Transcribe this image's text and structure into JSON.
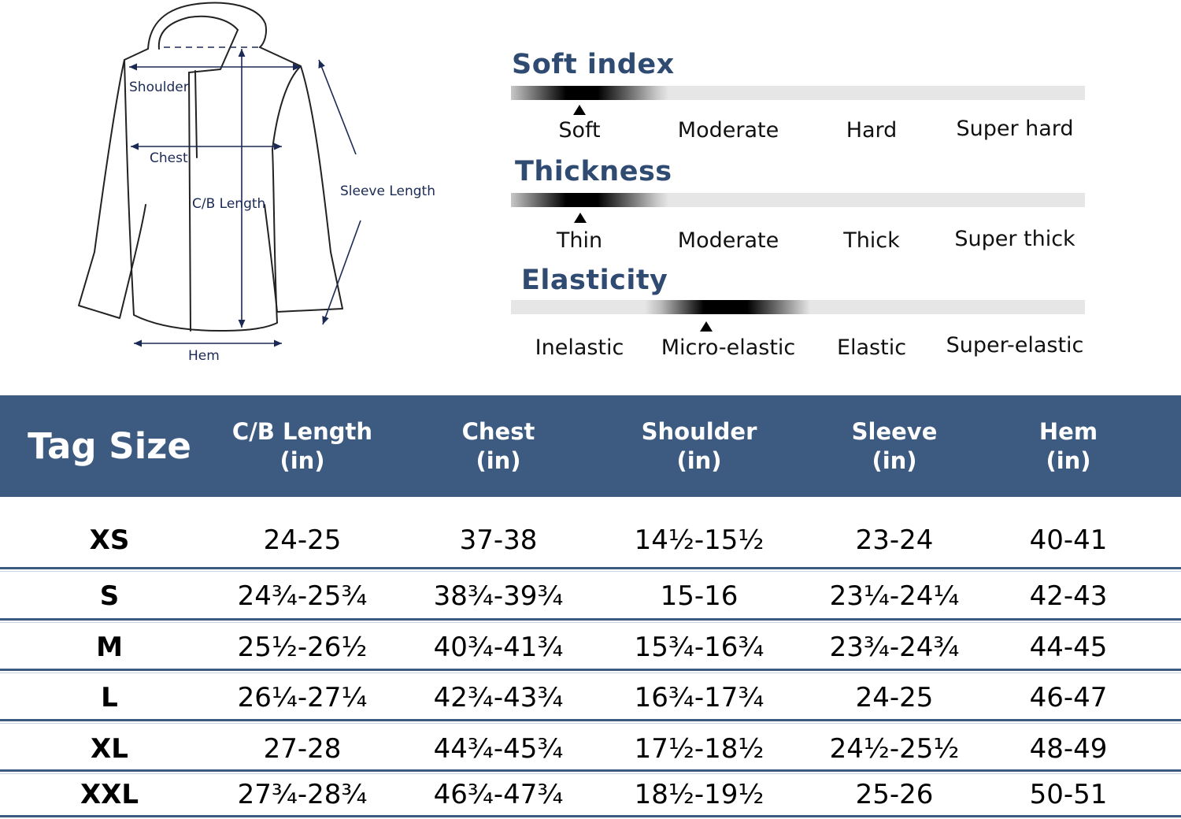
{
  "diagram": {
    "labels": {
      "shoulder": "Shoulder",
      "chest": "Chest",
      "cb_length": "C/B Length",
      "sleeve_length": "Sleeve Length",
      "hem": "Hem"
    }
  },
  "scales": [
    {
      "title": "Soft index",
      "options": [
        "Soft",
        "Moderate",
        "Hard",
        "Super hard"
      ],
      "selected": "Soft"
    },
    {
      "title": "Thickness",
      "options": [
        "Thin",
        "Moderate",
        "Thick",
        "Super thick"
      ],
      "selected": "Thin"
    },
    {
      "title": "Elasticity",
      "options": [
        "Inelastic",
        "Micro-elastic",
        "Elastic",
        "Super-elastic"
      ],
      "selected": "Micro-elastic"
    }
  ],
  "table": {
    "headers": [
      {
        "main": "Tag Size"
      },
      {
        "line1": "C/B Length",
        "line2": "(in)"
      },
      {
        "line1": "Chest",
        "line2": "(in)"
      },
      {
        "line1": "Shoulder",
        "line2": "(in)"
      },
      {
        "line1": "Sleeve",
        "line2": "(in)"
      },
      {
        "line1": "Hem",
        "line2": "(in)"
      }
    ],
    "rows": [
      [
        "XS",
        "24-25",
        "37-38",
        "14½-15½",
        "23-24",
        "40-41"
      ],
      [
        "S",
        "24¾-25¾",
        "38¾-39¾",
        "15-16",
        "23¼-24¼",
        "42-43"
      ],
      [
        "M",
        "25½-26½",
        "40¾-41¾",
        "15¾-16¾",
        "23¾-24¾",
        "44-45"
      ],
      [
        "L",
        "26¼-27¼",
        "42¾-43¾",
        "16¾-17¾",
        "24-25",
        "46-47"
      ],
      [
        "XL",
        "27-28",
        "44¾-45¾",
        "17½-18½",
        "24½-25½",
        "48-49"
      ],
      [
        "XXL",
        "27¾-28¾",
        "46¾-47¾",
        "18½-19½",
        "25-26",
        "50-51"
      ]
    ]
  },
  "colors": {
    "header_bg": "#3d5b80",
    "title_text": "#2f4b72",
    "diagram_label": "#1b2a55"
  }
}
